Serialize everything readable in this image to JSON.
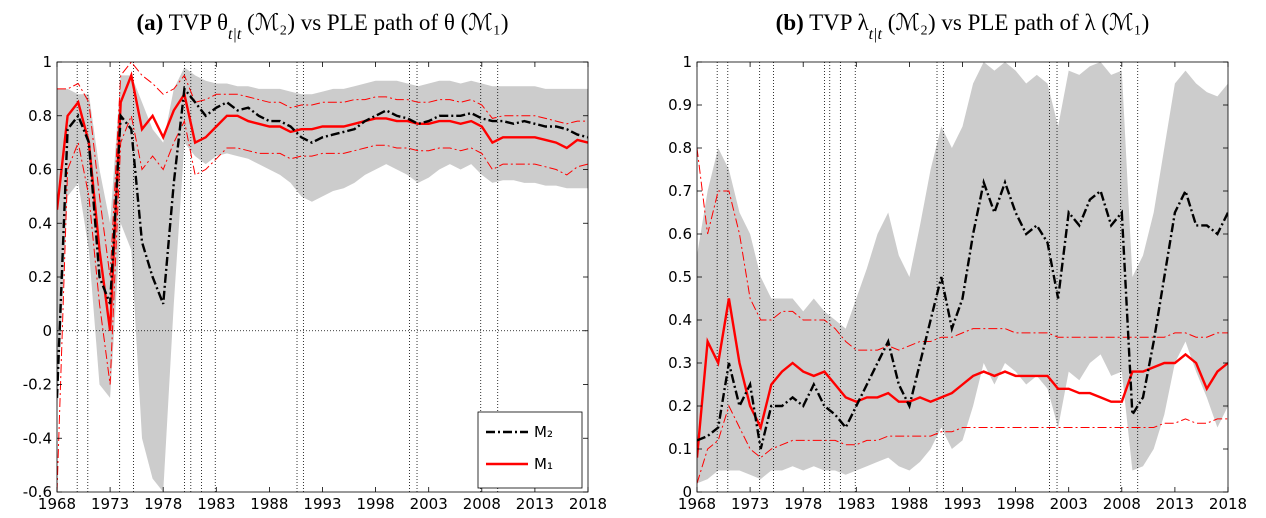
{
  "chart_data": [
    {
      "type": "line",
      "title": [
        "(a)",
        " TVP θ",
        "t|t",
        " (ℳ₂) vs PLE path of θ (ℳ₁)"
      ],
      "xlim": [
        1968,
        2018
      ],
      "xticks": [
        1968,
        1973,
        1978,
        1983,
        1988,
        1993,
        1998,
        2003,
        2008,
        2013,
        2018
      ],
      "ylim": [
        -0.6,
        1
      ],
      "yticks": [
        -0.6,
        -0.4,
        -0.2,
        0,
        0.2,
        0.4,
        0.6,
        0.8,
        1
      ],
      "vlines": [
        1969.9,
        1970.9,
        1973.9,
        1975.2,
        1980.0,
        1980.6,
        1981.6,
        1982.9,
        1990.6,
        1991.2,
        2001.2,
        2001.9,
        2007.9,
        2009.5
      ],
      "hlines": [
        0
      ],
      "legend": "lower right",
      "x": [
        1968,
        1969,
        1970,
        1971,
        1972,
        1973,
        1974,
        1975,
        1976,
        1977,
        1978,
        1979,
        1980,
        1981,
        1982,
        1983,
        1984,
        1985,
        1986,
        1987,
        1988,
        1989,
        1990,
        1991,
        1992,
        1993,
        1994,
        1995,
        1996,
        1997,
        1998,
        1999,
        2000,
        2001,
        2002,
        2003,
        2004,
        2005,
        2006,
        2007,
        2008,
        2009,
        2010,
        2011,
        2012,
        2013,
        2014,
        2015,
        2016,
        2017,
        2018
      ],
      "series": [
        {
          "name": "M₂",
          "color": "#000000",
          "line_style": "dash-dot",
          "band_kind": "area",
          "band_color": "#cccccc",
          "values": [
            -0.25,
            0.75,
            0.8,
            0.7,
            0.2,
            0.1,
            0.8,
            0.75,
            0.33,
            0.2,
            0.1,
            0.55,
            0.9,
            0.85,
            0.8,
            0.83,
            0.85,
            0.82,
            0.83,
            0.8,
            0.78,
            0.78,
            0.76,
            0.72,
            0.7,
            0.72,
            0.73,
            0.74,
            0.75,
            0.78,
            0.8,
            0.82,
            0.8,
            0.79,
            0.77,
            0.78,
            0.8,
            0.8,
            0.8,
            0.81,
            0.79,
            0.78,
            0.78,
            0.77,
            0.78,
            0.77,
            0.76,
            0.76,
            0.75,
            0.73,
            0.72
          ],
          "band_upper": [
            0.9,
            0.9,
            0.88,
            0.88,
            0.6,
            0.4,
            0.95,
            0.95,
            0.85,
            0.75,
            0.7,
            0.9,
            0.98,
            0.95,
            0.93,
            0.92,
            0.92,
            0.91,
            0.91,
            0.9,
            0.9,
            0.9,
            0.89,
            0.88,
            0.88,
            0.89,
            0.9,
            0.9,
            0.91,
            0.92,
            0.93,
            0.93,
            0.93,
            0.92,
            0.91,
            0.92,
            0.93,
            0.93,
            0.92,
            0.93,
            0.92,
            0.91,
            0.91,
            0.91,
            0.91,
            0.91,
            0.9,
            0.9,
            0.9,
            0.9,
            0.9
          ],
          "band_lower": [
            -0.3,
            0.5,
            0.55,
            0.3,
            -0.2,
            -0.25,
            0.4,
            0.3,
            -0.4,
            -0.55,
            -0.6,
            0.1,
            0.7,
            0.65,
            0.62,
            0.65,
            0.66,
            0.65,
            0.64,
            0.62,
            0.6,
            0.58,
            0.55,
            0.5,
            0.48,
            0.5,
            0.52,
            0.53,
            0.55,
            0.58,
            0.6,
            0.62,
            0.6,
            0.58,
            0.55,
            0.57,
            0.6,
            0.62,
            0.6,
            0.62,
            0.58,
            0.55,
            0.56,
            0.56,
            0.55,
            0.55,
            0.54,
            0.54,
            0.53,
            0.53,
            0.53
          ]
        },
        {
          "name": "M₁",
          "color": "#ff0000",
          "line_style": "solid",
          "band_kind": "line",
          "band_color": "#ff0000",
          "values": [
            0.45,
            0.8,
            0.85,
            0.7,
            0.3,
            0.0,
            0.85,
            0.95,
            0.75,
            0.8,
            0.72,
            0.82,
            0.88,
            0.7,
            0.72,
            0.76,
            0.8,
            0.8,
            0.78,
            0.77,
            0.76,
            0.76,
            0.74,
            0.75,
            0.75,
            0.76,
            0.76,
            0.76,
            0.77,
            0.78,
            0.79,
            0.79,
            0.78,
            0.78,
            0.77,
            0.77,
            0.78,
            0.78,
            0.77,
            0.78,
            0.76,
            0.7,
            0.72,
            0.72,
            0.72,
            0.72,
            0.71,
            0.7,
            0.68,
            0.71,
            0.7
          ],
          "band_upper": [
            0.9,
            0.9,
            0.92,
            0.85,
            0.5,
            0.2,
            0.95,
            1.0,
            0.95,
            0.92,
            0.88,
            0.9,
            0.95,
            0.85,
            0.86,
            0.88,
            0.88,
            0.88,
            0.87,
            0.86,
            0.85,
            0.85,
            0.83,
            0.84,
            0.84,
            0.85,
            0.85,
            0.85,
            0.86,
            0.86,
            0.87,
            0.87,
            0.86,
            0.86,
            0.85,
            0.85,
            0.86,
            0.86,
            0.85,
            0.86,
            0.84,
            0.79,
            0.8,
            0.8,
            0.8,
            0.8,
            0.79,
            0.78,
            0.77,
            0.78,
            0.78
          ],
          "band_lower": [
            -0.6,
            0.6,
            0.7,
            0.5,
            0.1,
            -0.2,
            0.7,
            0.8,
            0.6,
            0.65,
            0.6,
            0.7,
            0.78,
            0.58,
            0.6,
            0.64,
            0.68,
            0.68,
            0.67,
            0.66,
            0.66,
            0.66,
            0.64,
            0.65,
            0.65,
            0.66,
            0.66,
            0.66,
            0.67,
            0.68,
            0.69,
            0.69,
            0.68,
            0.68,
            0.67,
            0.67,
            0.68,
            0.68,
            0.67,
            0.68,
            0.66,
            0.6,
            0.62,
            0.62,
            0.62,
            0.62,
            0.61,
            0.6,
            0.58,
            0.61,
            0.62
          ]
        }
      ]
    },
    {
      "type": "line",
      "title": [
        "(b)",
        " TVP λ",
        "t|t",
        " (ℳ₂) vs PLE path of λ (ℳ₁)"
      ],
      "xlim": [
        1968,
        2018
      ],
      "xticks": [
        1968,
        1973,
        1978,
        1983,
        1988,
        1993,
        1998,
        2003,
        2008,
        2013,
        2018
      ],
      "ylim": [
        0,
        1
      ],
      "yticks": [
        0,
        0.1,
        0.2,
        0.3,
        0.4,
        0.5,
        0.6,
        0.7,
        0.8,
        0.9,
        1
      ],
      "vlines": [
        1969.9,
        1970.9,
        1973.9,
        1975.2,
        1980.0,
        1980.5,
        1981.5,
        1982.9,
        1990.6,
        1991.2,
        2001.2,
        2001.9,
        2007.9,
        2009.5
      ],
      "x": [
        1968,
        1969,
        1970,
        1971,
        1972,
        1973,
        1974,
        1975,
        1976,
        1977,
        1978,
        1979,
        1980,
        1981,
        1982,
        1983,
        1984,
        1985,
        1986,
        1987,
        1988,
        1989,
        1990,
        1991,
        1992,
        1993,
        1994,
        1995,
        1996,
        1997,
        1998,
        1999,
        2000,
        2001,
        2002,
        2003,
        2004,
        2005,
        2006,
        2007,
        2008,
        2009,
        2010,
        2011,
        2012,
        2013,
        2014,
        2015,
        2016,
        2017,
        2018
      ],
      "series": [
        {
          "color": "#000000",
          "line_style": "dash-dot",
          "band_kind": "area",
          "band_color": "#cccccc",
          "values": [
            0.12,
            0.13,
            0.15,
            0.3,
            0.2,
            0.25,
            0.1,
            0.2,
            0.2,
            0.22,
            0.2,
            0.25,
            0.2,
            0.18,
            0.15,
            0.2,
            0.25,
            0.3,
            0.35,
            0.25,
            0.2,
            0.3,
            0.4,
            0.5,
            0.38,
            0.45,
            0.6,
            0.72,
            0.65,
            0.72,
            0.65,
            0.6,
            0.62,
            0.58,
            0.45,
            0.65,
            0.62,
            0.68,
            0.7,
            0.62,
            0.65,
            0.18,
            0.22,
            0.35,
            0.5,
            0.65,
            0.7,
            0.62,
            0.62,
            0.6,
            0.65
          ],
          "band_upper": [
            0.55,
            0.7,
            0.8,
            0.75,
            0.65,
            0.6,
            0.5,
            0.45,
            0.45,
            0.45,
            0.42,
            0.45,
            0.42,
            0.4,
            0.38,
            0.45,
            0.52,
            0.6,
            0.65,
            0.55,
            0.5,
            0.62,
            0.75,
            0.85,
            0.8,
            0.85,
            0.95,
            1.0,
            0.98,
            1.0,
            0.98,
            0.95,
            0.97,
            0.95,
            0.85,
            0.98,
            0.97,
            0.99,
            1.0,
            0.97,
            0.98,
            0.5,
            0.55,
            0.65,
            0.8,
            0.95,
            0.98,
            0.95,
            0.93,
            0.92,
            0.95
          ],
          "band_lower": [
            0.02,
            0.03,
            0.05,
            0.05,
            0.05,
            0.04,
            0.03,
            0.05,
            0.05,
            0.06,
            0.05,
            0.06,
            0.05,
            0.05,
            0.04,
            0.05,
            0.06,
            0.07,
            0.08,
            0.06,
            0.05,
            0.07,
            0.1,
            0.15,
            0.1,
            0.12,
            0.2,
            0.3,
            0.25,
            0.3,
            0.28,
            0.25,
            0.27,
            0.24,
            0.15,
            0.28,
            0.26,
            0.3,
            0.32,
            0.27,
            0.28,
            0.05,
            0.06,
            0.1,
            0.18,
            0.3,
            0.35,
            0.28,
            0.22,
            0.15,
            0.2
          ]
        },
        {
          "color": "#ff0000",
          "line_style": "solid",
          "band_kind": "line",
          "band_color": "#ff0000",
          "values": [
            0.08,
            0.35,
            0.3,
            0.45,
            0.3,
            0.2,
            0.15,
            0.25,
            0.28,
            0.3,
            0.28,
            0.27,
            0.28,
            0.25,
            0.22,
            0.21,
            0.22,
            0.22,
            0.23,
            0.21,
            0.21,
            0.22,
            0.21,
            0.22,
            0.23,
            0.25,
            0.27,
            0.28,
            0.27,
            0.28,
            0.27,
            0.27,
            0.27,
            0.27,
            0.24,
            0.24,
            0.23,
            0.23,
            0.22,
            0.21,
            0.21,
            0.28,
            0.28,
            0.29,
            0.3,
            0.3,
            0.32,
            0.3,
            0.24,
            0.28,
            0.3
          ],
          "band_upper": [
            0.8,
            0.6,
            0.7,
            0.7,
            0.6,
            0.45,
            0.4,
            0.4,
            0.42,
            0.42,
            0.4,
            0.4,
            0.4,
            0.38,
            0.35,
            0.33,
            0.33,
            0.33,
            0.34,
            0.33,
            0.34,
            0.35,
            0.35,
            0.36,
            0.36,
            0.37,
            0.38,
            0.38,
            0.38,
            0.38,
            0.37,
            0.37,
            0.37,
            0.37,
            0.36,
            0.36,
            0.36,
            0.36,
            0.36,
            0.36,
            0.36,
            0.36,
            0.36,
            0.36,
            0.36,
            0.37,
            0.37,
            0.36,
            0.36,
            0.37,
            0.37
          ],
          "band_lower": [
            0.02,
            0.1,
            0.12,
            0.2,
            0.15,
            0.1,
            0.08,
            0.1,
            0.11,
            0.12,
            0.12,
            0.12,
            0.12,
            0.12,
            0.11,
            0.11,
            0.12,
            0.12,
            0.13,
            0.13,
            0.13,
            0.13,
            0.13,
            0.14,
            0.14,
            0.15,
            0.15,
            0.15,
            0.15,
            0.15,
            0.15,
            0.15,
            0.15,
            0.15,
            0.15,
            0.15,
            0.15,
            0.15,
            0.15,
            0.15,
            0.15,
            0.15,
            0.15,
            0.15,
            0.16,
            0.16,
            0.17,
            0.16,
            0.16,
            0.17,
            0.17
          ]
        }
      ]
    }
  ]
}
